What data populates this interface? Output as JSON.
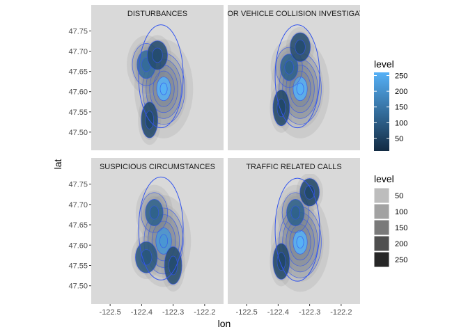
{
  "chart_data": {
    "type": "heatmap",
    "subtype": "faceted 2D density contour map",
    "xlabel": "lon",
    "ylabel": "lat",
    "xlim": [
      -122.56,
      -122.14
    ],
    "ylim": [
      47.455,
      47.775
    ],
    "x_ticks": [
      -122.5,
      -122.4,
      -122.3,
      -122.2
    ],
    "x_tick_labels": [
      "-122.5",
      "-122.4",
      "-122.3",
      "-122.2"
    ],
    "y_ticks": [
      47.5,
      47.55,
      47.6,
      47.65,
      47.7,
      47.75
    ],
    "y_tick_labels": [
      "47.50",
      "47.55",
      "47.60",
      "47.65",
      "47.70",
      "47.75"
    ],
    "facets": [
      {
        "title": "DISTURBANCES",
        "peak_level": 250,
        "hotspots": [
          {
            "lon": -122.33,
            "lat": 47.607,
            "level": 250
          },
          {
            "lon": -122.385,
            "lat": 47.667,
            "level": 120
          },
          {
            "lon": -122.35,
            "lat": 47.69,
            "level": 60
          },
          {
            "lon": -122.375,
            "lat": 47.53,
            "level": 50
          }
        ]
      },
      {
        "title": "MOTOR VEHICLE COLLISION INVESTIGATION",
        "peak_level": 250,
        "hotspots": [
          {
            "lon": -122.33,
            "lat": 47.607,
            "level": 250
          },
          {
            "lon": -122.365,
            "lat": 47.66,
            "level": 100
          },
          {
            "lon": -122.33,
            "lat": 47.71,
            "level": 60
          },
          {
            "lon": -122.39,
            "lat": 47.56,
            "level": 50
          }
        ]
      },
      {
        "title": "SUSPICIOUS CIRCUMSTANCES",
        "peak_level": 200,
        "hotspots": [
          {
            "lon": -122.33,
            "lat": 47.61,
            "level": 200
          },
          {
            "lon": -122.36,
            "lat": 47.68,
            "level": 100
          },
          {
            "lon": -122.385,
            "lat": 47.57,
            "level": 80
          },
          {
            "lon": -122.3,
            "lat": 47.55,
            "level": 60
          }
        ]
      },
      {
        "title": "TRAFFIC RELATED CALLS",
        "peak_level": 250,
        "hotspots": [
          {
            "lon": -122.33,
            "lat": 47.607,
            "level": 250
          },
          {
            "lon": -122.345,
            "lat": 47.68,
            "level": 100
          },
          {
            "lon": -122.3,
            "lat": 47.73,
            "level": 50
          },
          {
            "lon": -122.39,
            "lat": 47.56,
            "level": 50
          }
        ]
      }
    ],
    "legends": [
      {
        "title": "level",
        "kind": "colorbar",
        "labels": [
          "250",
          "200",
          "150",
          "100",
          "50"
        ],
        "values": [
          250,
          200,
          150,
          100,
          50
        ],
        "colors": [
          "#56B1F7",
          "#132B43"
        ]
      },
      {
        "title": "level",
        "kind": "discrete",
        "labels": [
          "50",
          "100",
          "150",
          "200",
          "250"
        ],
        "values": [
          50,
          100,
          150,
          200,
          250
        ],
        "colors": [
          "#BDBDBD",
          "#A2A2A2",
          "#7A7A7A",
          "#4F4F4F",
          "#262626"
        ]
      }
    ]
  },
  "colors": {
    "panel": "#D9D9D9",
    "strip": "#D9D9D9",
    "contour": "#3355EE",
    "axis_text": "#4D4D4D"
  }
}
